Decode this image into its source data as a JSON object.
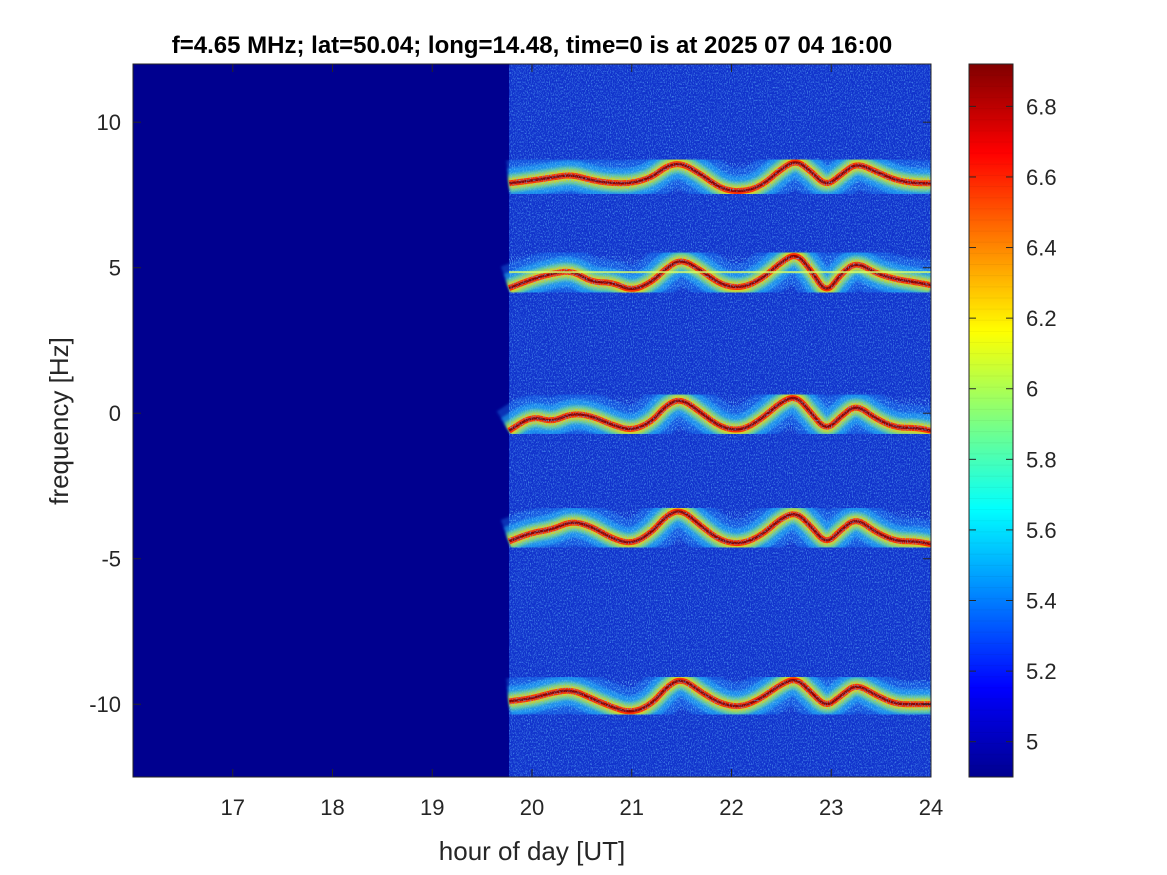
{
  "chart_data": {
    "type": "heatmap",
    "title": "f=4.65 MHz;  lat=50.04; long=14.48, time=0 is at 2025 07 04 16:00",
    "xlabel": "hour of day [UT]",
    "ylabel": "frequency [Hz]",
    "xlim": [
      16,
      24
    ],
    "ylim": [
      -12.5,
      12
    ],
    "x_ticks": [
      17,
      18,
      19,
      20,
      21,
      22,
      23,
      24
    ],
    "x_tick_labels": [
      "17",
      "18",
      "19",
      "20",
      "21",
      "22",
      "23",
      "24"
    ],
    "y_ticks": [
      10,
      5,
      0,
      -5,
      -10
    ],
    "y_tick_labels": [
      "10",
      "5",
      "0",
      "-5",
      "-10"
    ],
    "data_start_hour": 19.77,
    "background_level": 4.9,
    "colormap": "jet",
    "colorbar": {
      "limits": [
        4.9,
        6.92
      ],
      "ticks": [
        5,
        5.2,
        5.4,
        5.6,
        5.8,
        6,
        6.2,
        6.4,
        6.6,
        6.8
      ],
      "tick_labels": [
        "5",
        "5.2",
        "5.4",
        "5.6",
        "5.8",
        "6",
        "6.2",
        "6.4",
        "6.6",
        "6.8"
      ]
    },
    "series": [
      {
        "center_offset": 7.95,
        "x": [
          19.77,
          20.0,
          20.2,
          20.4,
          20.6,
          20.8,
          21.0,
          21.2,
          21.35,
          21.5,
          21.7,
          21.9,
          22.1,
          22.3,
          22.5,
          22.65,
          22.8,
          22.95,
          23.1,
          23.25,
          23.45,
          23.65,
          23.85,
          24.0
        ],
        "y": [
          7.9,
          8.0,
          8.1,
          8.2,
          8.0,
          7.9,
          7.9,
          8.1,
          8.5,
          8.6,
          8.2,
          7.7,
          7.6,
          7.8,
          8.4,
          8.7,
          8.3,
          7.8,
          8.2,
          8.6,
          8.3,
          8.0,
          7.9,
          7.9
        ]
      },
      {
        "center_offset": 4.6,
        "x": [
          19.77,
          20.0,
          20.2,
          20.4,
          20.6,
          20.8,
          21.0,
          21.2,
          21.35,
          21.5,
          21.7,
          21.9,
          22.1,
          22.3,
          22.5,
          22.65,
          22.8,
          22.95,
          23.1,
          23.25,
          23.45,
          23.65,
          23.85,
          24.0
        ],
        "y": [
          4.3,
          4.6,
          4.8,
          4.9,
          4.5,
          4.5,
          4.2,
          4.5,
          5.0,
          5.3,
          4.9,
          4.4,
          4.3,
          4.6,
          5.2,
          5.5,
          4.9,
          4.1,
          4.8,
          5.2,
          4.8,
          4.6,
          4.5,
          4.4
        ]
      },
      {
        "center_offset": -0.5,
        "x": [
          19.77,
          20.0,
          20.2,
          20.4,
          20.6,
          20.8,
          21.0,
          21.2,
          21.35,
          21.5,
          21.7,
          21.9,
          22.1,
          22.3,
          22.5,
          22.65,
          22.8,
          22.95,
          23.1,
          23.25,
          23.45,
          23.65,
          23.85,
          24.0
        ],
        "y": [
          -0.6,
          -0.1,
          -0.3,
          0.0,
          -0.1,
          -0.4,
          -0.6,
          -0.3,
          0.3,
          0.5,
          0.0,
          -0.5,
          -0.6,
          -0.2,
          0.4,
          0.6,
          0.0,
          -0.6,
          -0.1,
          0.3,
          -0.2,
          -0.5,
          -0.5,
          -0.6
        ]
      },
      {
        "center_offset": -4.4,
        "x": [
          19.77,
          20.0,
          20.2,
          20.4,
          20.6,
          20.8,
          21.0,
          21.2,
          21.35,
          21.5,
          21.7,
          21.9,
          22.1,
          22.3,
          22.5,
          22.65,
          22.8,
          22.95,
          23.1,
          23.25,
          23.45,
          23.65,
          23.85,
          24.0
        ],
        "y": [
          -4.4,
          -4.1,
          -4.0,
          -3.7,
          -3.9,
          -4.3,
          -4.5,
          -4.1,
          -3.5,
          -3.3,
          -3.9,
          -4.4,
          -4.5,
          -4.2,
          -3.6,
          -3.4,
          -3.9,
          -4.5,
          -4.0,
          -3.6,
          -4.1,
          -4.4,
          -4.4,
          -4.5
        ]
      },
      {
        "center_offset": -9.9,
        "x": [
          19.77,
          20.0,
          20.2,
          20.4,
          20.6,
          20.8,
          21.0,
          21.2,
          21.35,
          21.5,
          21.7,
          21.9,
          22.1,
          22.3,
          22.5,
          22.65,
          22.8,
          22.95,
          23.1,
          23.25,
          23.45,
          23.65,
          23.85,
          24.0
        ],
        "y": [
          -9.9,
          -9.8,
          -9.6,
          -9.5,
          -9.8,
          -10.1,
          -10.3,
          -10.0,
          -9.4,
          -9.1,
          -9.6,
          -10.0,
          -10.1,
          -9.8,
          -9.3,
          -9.1,
          -9.6,
          -10.1,
          -9.7,
          -9.3,
          -9.7,
          -10.0,
          -10.0,
          -10.0
        ]
      }
    ],
    "steady_line": {
      "y": 4.85,
      "x_range": [
        19.77,
        24.0
      ]
    }
  }
}
